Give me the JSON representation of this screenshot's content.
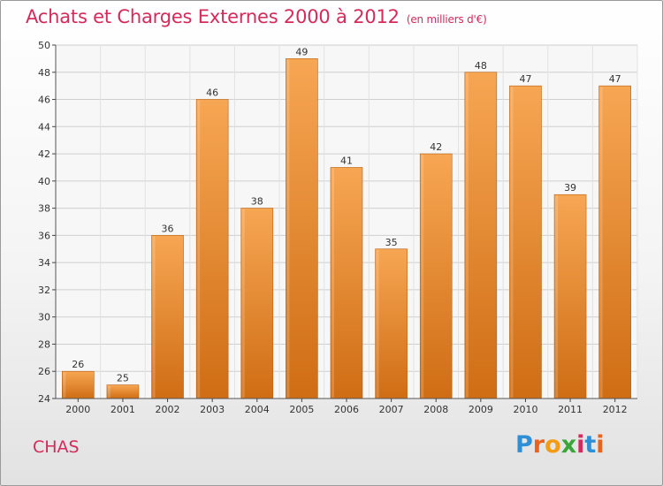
{
  "chart_data": {
    "type": "bar",
    "title": "Achats et Charges Externes 2000 à 2012",
    "unit_label": "(en milliers d'€)",
    "categories": [
      "2000",
      "2001",
      "2002",
      "2003",
      "2004",
      "2005",
      "2006",
      "2007",
      "2008",
      "2009",
      "2010",
      "2011",
      "2012"
    ],
    "values": [
      26,
      25,
      36,
      46,
      38,
      49,
      41,
      35,
      42,
      48,
      47,
      39,
      47
    ],
    "ylim": [
      24,
      50
    ],
    "yticks": [
      24,
      26,
      28,
      30,
      32,
      34,
      36,
      38,
      40,
      42,
      44,
      46,
      48,
      50
    ],
    "grid": true,
    "xlabel": "",
    "ylabel": "",
    "colors": {
      "bar_top": "#f7a653",
      "bar_bottom": "#cf6d14",
      "title": "#d52a5b"
    }
  },
  "footer": {
    "location": "CHAS",
    "logo": [
      "P",
      "r",
      "o",
      "x",
      "i",
      "t",
      "i"
    ]
  }
}
